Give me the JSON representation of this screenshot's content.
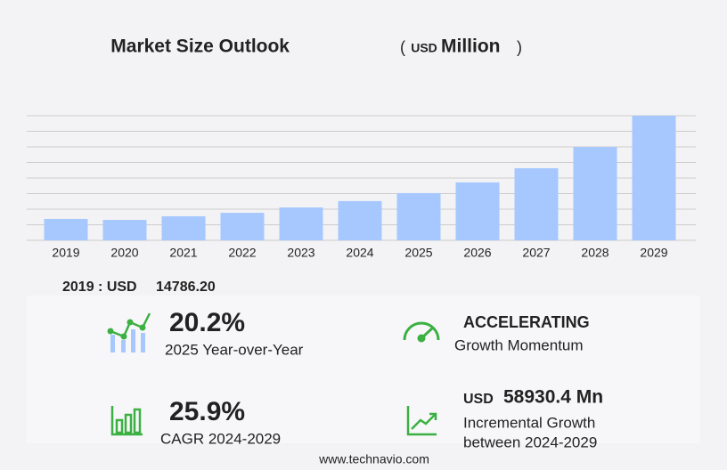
{
  "chart_data": {
    "type": "bar",
    "title": "Market Size Outlook",
    "paren_open": "(",
    "unit_prefix": "USD",
    "unit": "Million",
    "paren_close": ")",
    "categories": [
      "2019",
      "2020",
      "2021",
      "2022",
      "2023",
      "2024",
      "2025",
      "2026",
      "2027",
      "2028",
      "2029"
    ],
    "values": [
      14786.2,
      14100,
      16600,
      19000,
      22700,
      27100,
      32600,
      40000,
      49800,
      64500,
      86030
    ],
    "color": "#a6c8ff",
    "ylim": [
      0,
      86030
    ],
    "grid": true
  },
  "stats": {
    "base_label": "2019 : USD",
    "base_value": "14786.20",
    "yoy_value": "20.2%",
    "yoy_label": "2025 Year-over-Year",
    "momentum_value": "ACCELERATING",
    "momentum_label": "Growth Momentum",
    "cagr_value": "25.9%",
    "cagr_label": "CAGR 2024-2029",
    "incr_unit": "USD",
    "incr_value": "58930.4 Mn",
    "incr_label_1": "Incremental Growth",
    "incr_label_2": "between 2024-2029"
  },
  "footer": "www.technavio.com"
}
